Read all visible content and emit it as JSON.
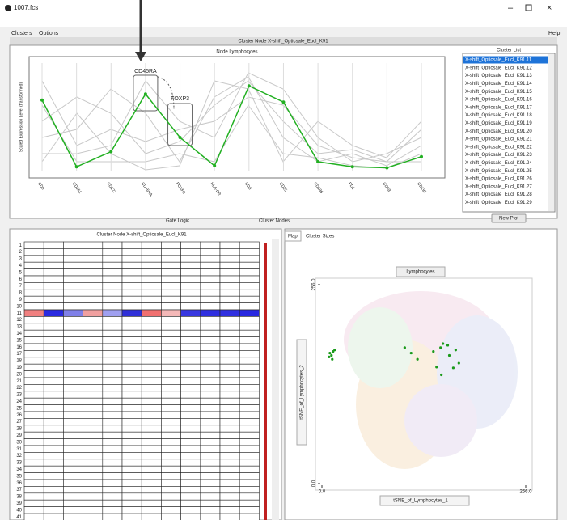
{
  "window": {
    "title": "1007.fcs",
    "menu": [
      "Clusters",
      "Options"
    ],
    "help": "Help"
  },
  "header": "Cluster Node X-shift_Opticsale_Eucl_K91",
  "chart_data": [
    {
      "type": "line",
      "title": "Node Lymphocytes",
      "y_label": "Scaled Expression Level (transformed)",
      "categories": [
        "CD8",
        "CD161",
        "CD127",
        "CD45RA",
        "FOXP3",
        "HLA-DR",
        "CD3",
        "CD25",
        "CD196",
        "PD1",
        "CD69",
        "CD197"
      ],
      "series": [
        {
          "color": "#22b022",
          "values": [
            0.69,
            0.03,
            0.18,
            0.75,
            0.32,
            0.04,
            0.83,
            0.67,
            0.08,
            0.03,
            0.02,
            0.13
          ]
        }
      ],
      "ylim": [
        0,
        1
      ],
      "annotations": [
        "CD45RA",
        "FOXP3"
      ]
    },
    {
      "type": "scatter",
      "title": "Lymphocytes",
      "x_label": "tSNE_of_Lymphocytes_1",
      "y_label": "tSNE_of_Lymphocytes_2",
      "x": [
        10,
        12,
        14,
        9,
        16,
        13,
        104,
        112,
        120,
        140,
        149,
        152,
        158,
        160,
        165,
        168,
        172,
        150,
        144
      ],
      "series": [
        {
          "color": "#1a9a1a",
          "values": [
            168,
            165,
            170,
            163,
            172,
            160,
            175,
            168,
            160,
            170,
            175,
            180,
            178,
            165,
            149,
            172,
            155,
            140,
            150
          ]
        }
      ],
      "xlim": [
        0,
        256
      ],
      "ylim": [
        0,
        256
      ],
      "xticks": [
        {
          "value": 0,
          "label": "0.0"
        },
        {
          "value": 256,
          "label": "256.0"
        }
      ],
      "yticks": [
        {
          "value": 0,
          "label": "0.0"
        },
        {
          "value": 256,
          "label": "256.0"
        }
      ]
    }
  ],
  "cluster_list": {
    "title": "Cluster List",
    "button": "New Plot",
    "items": [
      "X-shift_Opticsale_Eucl_K91.11",
      "X-shift_Opticsale_Eucl_K91.12",
      "X-shift_Opticsale_Eucl_K91.13",
      "X-shift_Opticsale_Eucl_K91.14",
      "X-shift_Opticsale_Eucl_K91.15",
      "X-shift_Opticsale_Eucl_K91.16",
      "X-shift_Opticsale_Eucl_K91.17",
      "X-shift_Opticsale_Eucl_K91.18",
      "X-shift_Opticsale_Eucl_K91.19",
      "X-shift_Opticsale_Eucl_K91.20",
      "X-shift_Opticsale_Eucl_K91.21",
      "X-shift_Opticsale_Eucl_K91.22",
      "X-shift_Opticsale_Eucl_K91.23",
      "X-shift_Opticsale_Eucl_K91.24",
      "X-shift_Opticsale_Eucl_K91.25",
      "X-shift_Opticsale_Eucl_K91.26",
      "X-shift_Opticsale_Eucl_K91.27",
      "X-shift_Opticsale_Eucl_K91.28",
      "X-shift_Opticsale_Eucl_K91.29"
    ]
  },
  "controls": [
    "Gate Logic",
    "Cluster Nodes"
  ],
  "heatmap": {
    "title": "Cluster Node X-shift_Opticsale_Eucl_K91",
    "rows": [
      {
        "label": "1"
      },
      {
        "label": "2"
      },
      {
        "label": "3"
      },
      {
        "label": "4"
      },
      {
        "label": "5"
      },
      {
        "label": "6"
      },
      {
        "label": "7"
      },
      {
        "label": "8"
      },
      {
        "label": "9"
      },
      {
        "label": "10"
      },
      {
        "label": "11",
        "colors": [
          "#f08080",
          "#2a2ae0",
          "#8080e8",
          "#f0a0a0",
          "#a0a0f0",
          "#3030d8",
          "#f07070",
          "#f4b8b8",
          "#3838e0",
          "#3030e0",
          "#3030e0",
          "#2828e0"
        ]
      },
      {
        "label": "12"
      },
      {
        "label": "13"
      },
      {
        "label": "14"
      },
      {
        "label": "15"
      },
      {
        "label": "16"
      },
      {
        "label": "17"
      },
      {
        "label": "18"
      },
      {
        "label": "19"
      },
      {
        "label": "20"
      },
      {
        "label": "21"
      },
      {
        "label": "22"
      },
      {
        "label": "23"
      },
      {
        "label": "24"
      },
      {
        "label": "25"
      },
      {
        "label": "26"
      },
      {
        "label": "27"
      },
      {
        "label": "28"
      },
      {
        "label": "29"
      },
      {
        "label": "30"
      },
      {
        "label": "31"
      },
      {
        "label": "32"
      },
      {
        "label": "33"
      },
      {
        "label": "34"
      },
      {
        "label": "35"
      },
      {
        "label": "36"
      },
      {
        "label": "37"
      },
      {
        "label": "38"
      },
      {
        "label": "39"
      },
      {
        "label": "40"
      },
      {
        "label": "41"
      }
    ]
  },
  "tabs": [
    "Map",
    "Cluster Sizes"
  ]
}
